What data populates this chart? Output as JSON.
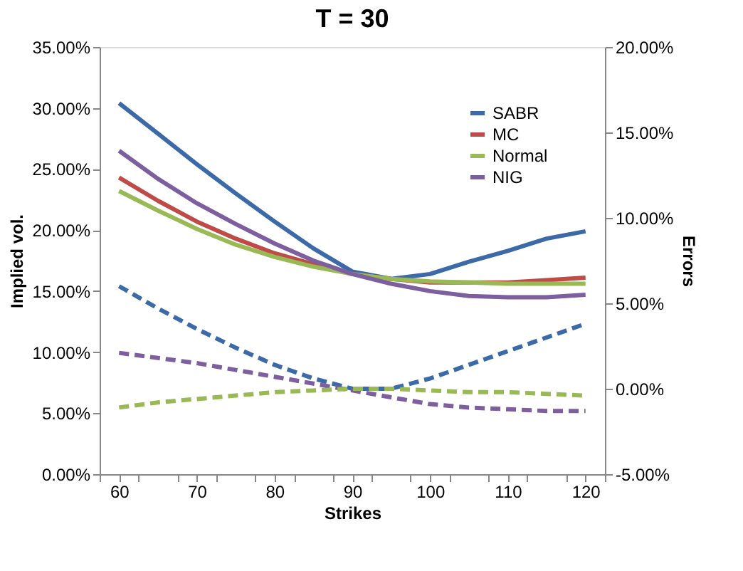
{
  "chart_data": {
    "type": "line",
    "title": "T = 30",
    "xlabel": "Strikes",
    "ylabel": "Implied vol.",
    "y2label": "Errors",
    "x": [
      60,
      65,
      70,
      75,
      80,
      85,
      90,
      95,
      100,
      105,
      110,
      115,
      120
    ],
    "xlim": [
      57.5,
      122.5
    ],
    "xticks": [
      {
        "value": 57.5,
        "label": null
      },
      60,
      {
        "value": 62.5,
        "label": null
      },
      {
        "value": 67.5,
        "label": null
      },
      70,
      {
        "value": 72.5,
        "label": null
      },
      {
        "value": 77.5,
        "label": null
      },
      80,
      {
        "value": 82.5,
        "label": null
      },
      {
        "value": 87.5,
        "label": null
      },
      90,
      {
        "value": 92.5,
        "label": null
      },
      {
        "value": 97.5,
        "label": null
      },
      100,
      {
        "value": 102.5,
        "label": null
      },
      {
        "value": 107.5,
        "label": null
      },
      110,
      {
        "value": 112.5,
        "label": null
      },
      {
        "value": 117.5,
        "label": null
      },
      120,
      {
        "value": 122.5,
        "label": null
      }
    ],
    "ylim": [
      0,
      35
    ],
    "yticks": [
      {
        "value": 0,
        "label": "0.00%"
      },
      {
        "value": 5,
        "label": "5.00%"
      },
      {
        "value": 10,
        "label": "10.00%"
      },
      {
        "value": 15,
        "label": "15.00%"
      },
      {
        "value": 20,
        "label": "20.00%"
      },
      {
        "value": 25,
        "label": "25.00%"
      },
      {
        "value": 30,
        "label": "30.00%"
      },
      {
        "value": 35,
        "label": "35.00%"
      }
    ],
    "y2lim": [
      -5,
      20
    ],
    "y2ticks": [
      {
        "value": -5,
        "label": "-5.00%"
      },
      {
        "value": 0,
        "label": "0.00%"
      },
      {
        "value": 5,
        "label": "5.00%"
      },
      {
        "value": 10,
        "label": "10.00%"
      },
      {
        "value": 15,
        "label": "15.00%"
      },
      {
        "value": 20,
        "label": "20.00%"
      }
    ],
    "legend": "top right",
    "grid": false,
    "marker": "none",
    "series": [
      {
        "name": "SABR",
        "color": "#3c6aa8",
        "line_style": "solid",
        "values": [
          30.4,
          27.9,
          25.4,
          23.0,
          20.7,
          18.5,
          16.6,
          16.0,
          16.4,
          17.4,
          18.3,
          19.3,
          19.9
        ]
      },
      {
        "name": "MC",
        "color": "#be4b48",
        "line_style": "solid",
        "values": [
          24.3,
          22.4,
          20.7,
          19.3,
          18.1,
          17.2,
          16.4,
          16.0,
          15.7,
          15.7,
          15.7,
          15.9,
          16.1
        ]
      },
      {
        "name": "Normal",
        "color": "#98b954",
        "line_style": "solid",
        "values": [
          23.2,
          21.6,
          20.1,
          18.8,
          17.8,
          17.0,
          16.4,
          16.0,
          15.8,
          15.7,
          15.6,
          15.6,
          15.6
        ]
      },
      {
        "name": "NIG",
        "color": "#7d5fa0",
        "line_style": "solid",
        "values": [
          26.5,
          24.2,
          22.2,
          20.5,
          18.9,
          17.5,
          16.4,
          15.6,
          15.0,
          14.6,
          14.5,
          14.5,
          14.7
        ]
      },
      {
        "color": "#3c6aa8",
        "line_style": "dashed",
        "axis": "y2",
        "values": [
          6.0,
          4.7,
          3.5,
          2.4,
          1.4,
          0.6,
          0.0,
          0.0,
          0.6,
          1.4,
          2.2,
          3.0,
          3.8
        ]
      },
      {
        "color": "#7d5fa0",
        "line_style": "dashed",
        "axis": "y2",
        "values": [
          2.1,
          1.8,
          1.5,
          1.1,
          0.7,
          0.3,
          -0.1,
          -0.5,
          -0.9,
          -1.1,
          -1.2,
          -1.3,
          -1.3
        ]
      },
      {
        "color": "#98b954",
        "line_style": "dashed",
        "axis": "y2",
        "values": [
          -1.1,
          -0.8,
          -0.6,
          -0.4,
          -0.2,
          -0.1,
          0.0,
          0.0,
          -0.1,
          -0.2,
          -0.2,
          -0.3,
          -0.4
        ]
      }
    ]
  }
}
